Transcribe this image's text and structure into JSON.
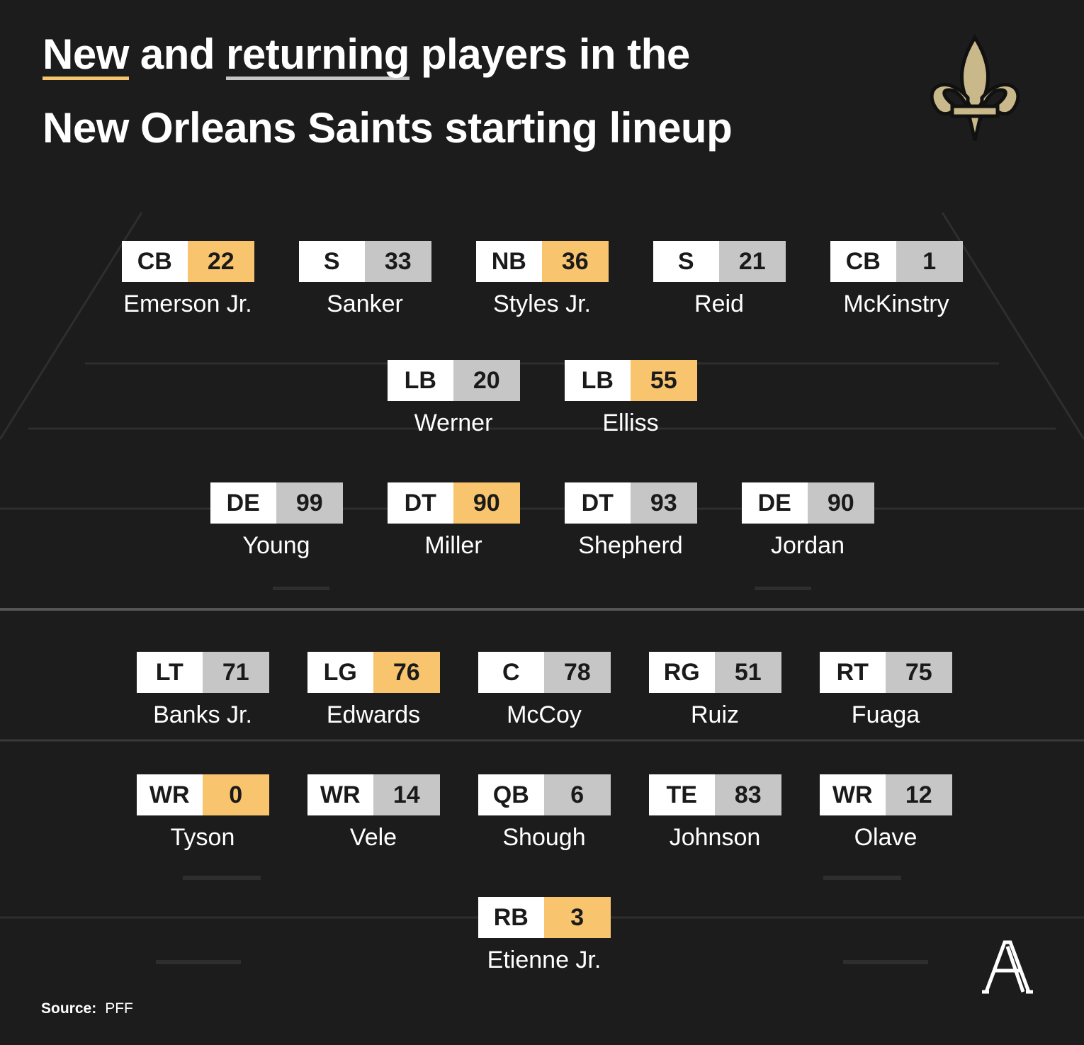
{
  "header": {
    "title_new": "New",
    "title_and": "and",
    "title_returning": "returning",
    "title_rest": "players in the",
    "title_line2": "New Orleans Saints starting lineup",
    "new_color": "#f8c56e",
    "returning_color": "#c6c6c6"
  },
  "rows": [
    [
      {
        "position": "CB",
        "number": 22,
        "name": "Emerson Jr.",
        "color": "#f8c56e"
      },
      {
        "position": "S",
        "number": 33,
        "name": "Sanker",
        "color": "#c6c6c6"
      },
      {
        "position": "NB",
        "number": 36,
        "name": "Styles Jr.",
        "color": "#f8c56e"
      },
      {
        "position": "S",
        "number": 21,
        "name": "Reid",
        "color": "#c6c6c6"
      },
      {
        "position": "CB",
        "number": 1,
        "name": "McKinstry",
        "color": "#c6c6c6"
      }
    ],
    [
      {
        "position": "LB",
        "number": 20,
        "name": "Werner",
        "color": "#c6c6c6"
      },
      {
        "position": "LB",
        "number": 55,
        "name": "Elliss",
        "color": "#f8c56e"
      }
    ],
    [
      {
        "position": "DE",
        "number": 99,
        "name": "Young",
        "color": "#c6c6c6"
      },
      {
        "position": "DT",
        "number": 90,
        "name": "Miller",
        "color": "#f8c56e"
      },
      {
        "position": "DT",
        "number": 93,
        "name": "Shepherd",
        "color": "#c6c6c6"
      },
      {
        "position": "DE",
        "number": 90,
        "name": "Jordan",
        "color": "#c6c6c6"
      }
    ],
    [
      {
        "position": "LT",
        "number": 71,
        "name": "Banks Jr.",
        "color": "#c6c6c6"
      },
      {
        "position": "LG",
        "number": 76,
        "name": "Edwards",
        "color": "#f8c56e"
      },
      {
        "position": "C",
        "number": 78,
        "name": "McCoy",
        "color": "#c6c6c6"
      },
      {
        "position": "RG",
        "number": 51,
        "name": "Ruiz",
        "color": "#c6c6c6"
      },
      {
        "position": "RT",
        "number": 75,
        "name": "Fuaga",
        "color": "#c6c6c6"
      }
    ],
    [
      {
        "position": "WR",
        "number": 0,
        "name": "Tyson",
        "color": "#f8c56e"
      },
      {
        "position": "WR",
        "number": 14,
        "name": "Vele",
        "color": "#c6c6c6"
      },
      {
        "position": "QB",
        "number": 6,
        "name": "Shough",
        "color": "#c6c6c6"
      },
      {
        "position": "TE",
        "number": 83,
        "name": "Johnson",
        "color": "#c6c6c6"
      },
      {
        "position": "WR",
        "number": 12,
        "name": "Olave",
        "color": "#c6c6c6"
      }
    ],
    [
      {
        "position": "RB",
        "number": 3,
        "name": "Etienne Jr.",
        "color": "#f8c56e"
      }
    ]
  ],
  "footer": {
    "source_label": "Source:",
    "source": "PFF"
  }
}
